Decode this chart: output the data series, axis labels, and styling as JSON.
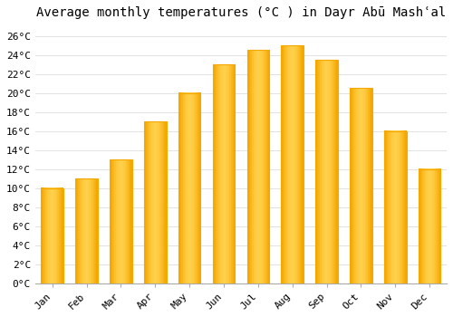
{
  "title": "Average monthly temperatures (°C ) in Dayr Abū Mashʿal",
  "months": [
    "Jan",
    "Feb",
    "Mar",
    "Apr",
    "May",
    "Jun",
    "Jul",
    "Aug",
    "Sep",
    "Oct",
    "Nov",
    "Dec"
  ],
  "values": [
    10.0,
    11.0,
    13.0,
    17.0,
    20.0,
    23.0,
    24.5,
    25.0,
    23.5,
    20.5,
    16.0,
    12.0
  ],
  "bar_color_center": "#FFD04B",
  "bar_color_edge": "#F5A800",
  "background_color": "#FFFFFF",
  "plot_bg_color": "#FFFFFF",
  "grid_color": "#DDDDDD",
  "ylim": [
    0,
    27
  ],
  "yticks": [
    0,
    2,
    4,
    6,
    8,
    10,
    12,
    14,
    16,
    18,
    20,
    22,
    24,
    26
  ],
  "title_fontsize": 10,
  "tick_fontsize": 8,
  "font_family": "monospace",
  "bar_width": 0.65
}
